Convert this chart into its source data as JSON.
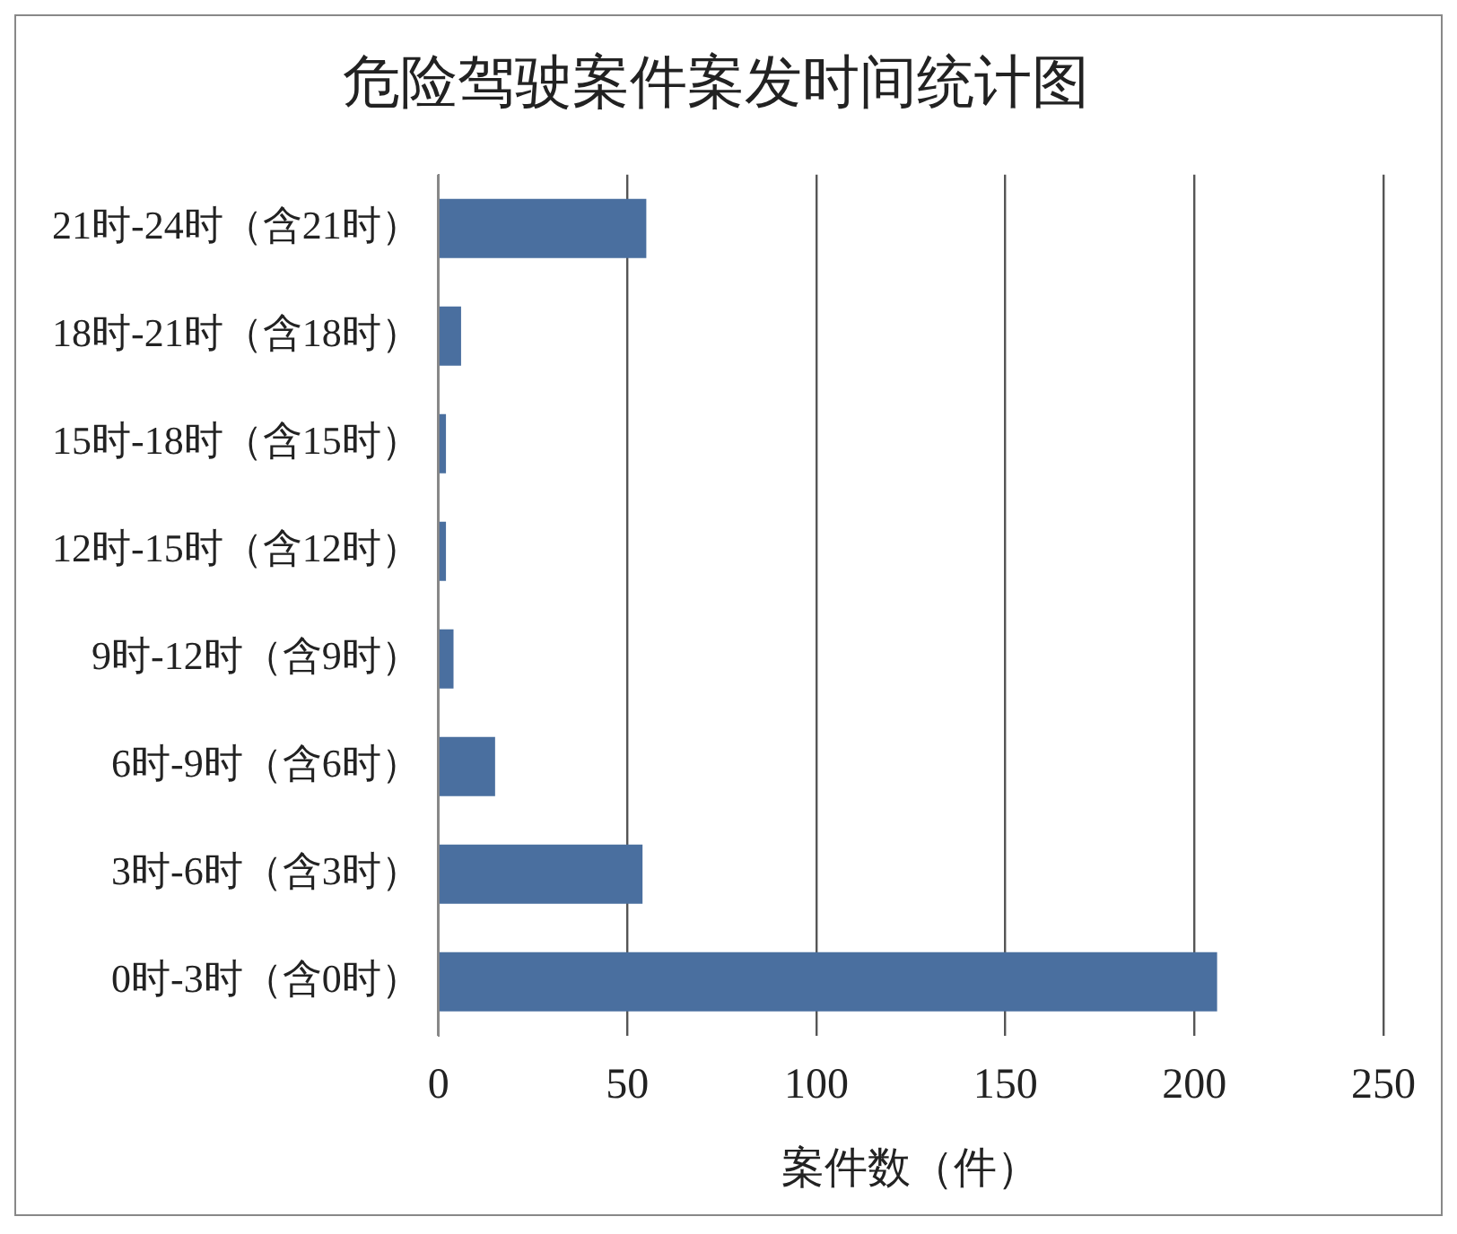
{
  "chart_data": {
    "type": "bar",
    "orientation": "horizontal",
    "title": "危险驾驶案件案发时间统计图",
    "xlabel": "案件数（件）",
    "categories": [
      "21时-24时（含21时）",
      "18时-21时（含18时）",
      "15时-18时（含15时）",
      "12时-15时（含12时）",
      "9时-12时（含9时）",
      "6时-9时（含6时）",
      "3时-6时（含3时）",
      "0时-3时（含0时）"
    ],
    "values": [
      55,
      6,
      2,
      2,
      4,
      15,
      54,
      206
    ],
    "color": "#4a6f9f",
    "xlim": [
      0,
      250
    ],
    "xticks": [
      0,
      50,
      100,
      150,
      200,
      250
    ],
    "grid": "x"
  }
}
